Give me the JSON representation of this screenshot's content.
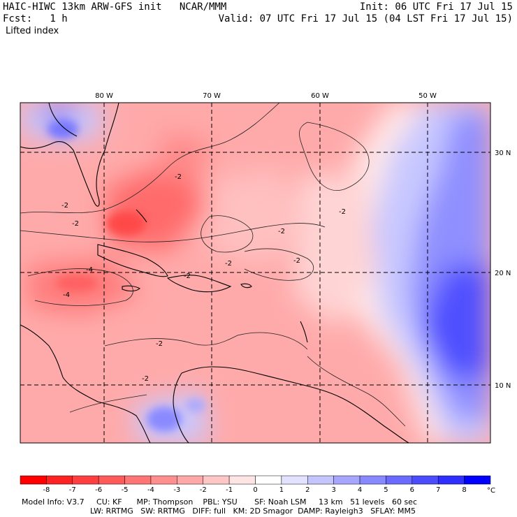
{
  "header": {
    "title": "HAIC-HIWC 13km ARW-GFS init   NCAR/MMM",
    "init": "Init: 06 UTC Fri 17 Jul 15",
    "fcst": "Fcst:   1 h",
    "valid": "Valid: 07 UTC Fri 17 Jul 15 (04 LST Fri 17 Jul 15)",
    "field": "Lifted index"
  },
  "map": {
    "lon_labels": [
      "80 W",
      "70 W",
      "60 W",
      "50 W"
    ],
    "lat_labels": [
      "30 N",
      "20 N",
      "10 N"
    ],
    "contour_labels": [
      "-2",
      "-2",
      "-2",
      "-2",
      "-2",
      "-2",
      "-2",
      "-2",
      "-4",
      "-4",
      "-2",
      "-2"
    ]
  },
  "legend": {
    "values": [
      "-8",
      "-7",
      "-6",
      "-5",
      "-4",
      "-3",
      "-2",
      "-1",
      "0",
      "1",
      "2",
      "3",
      "4",
      "5",
      "6",
      "7",
      "8"
    ],
    "unit": "°C",
    "colors": [
      "#ff0000",
      "#ff2222",
      "#ff3f3f",
      "#ff5a5a",
      "#ff7474",
      "#ff8e8e",
      "#ffa8a8",
      "#ffc6c6",
      "#ffe4e4",
      "#ffffff",
      "#e2e2ff",
      "#c4c4ff",
      "#a6a6ff",
      "#8888ff",
      "#6a6aff",
      "#4c4cff",
      "#2e2eff",
      "#0000ff"
    ]
  },
  "model_info": {
    "line1": "Model Info: V3.7     CU: KF      MP: Thompson    PBL: YSU       SF: Noah LSM     13 km   51 levels   60 sec",
    "line2": "LW: RRTMG   SW: RRTMG   DIFF: full   KM: 2D Smagor  DAMP: Rayleigh3   SFLAY: MM5"
  }
}
